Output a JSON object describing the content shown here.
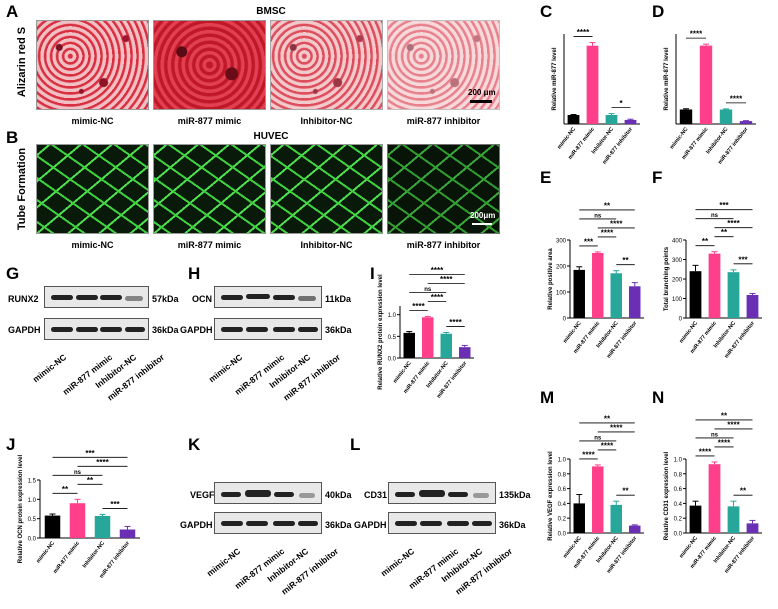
{
  "panels": {
    "A": "A",
    "B": "B",
    "C": "C",
    "D": "D",
    "E": "E",
    "F": "F",
    "G": "G",
    "H": "H",
    "I": "I",
    "J": "J",
    "K": "K",
    "L": "L",
    "M": "M",
    "N": "N"
  },
  "sectionA": {
    "title": "BMSC",
    "row_label": "Alizarin red S",
    "scale": "200 μm"
  },
  "sectionB": {
    "title": "HUVEC",
    "row_label": "Tube Formation",
    "scale": "200μm"
  },
  "conditions": [
    "mimic-NC",
    "miR-877 mimic",
    "Inhibitor-NC",
    "miR-877 inhibitor"
  ],
  "blots": {
    "G": {
      "target": "RUNX2",
      "target_kda": "57kDa",
      "control": "GAPDH",
      "control_kda": "36kDa"
    },
    "H": {
      "target": "OCN",
      "target_kda": "11kDa",
      "control": "GAPDH",
      "control_kda": "36kDa"
    },
    "K": {
      "target": "VEGF",
      "target_kda": "40kDa",
      "control": "GAPDH",
      "control_kda": "36kDa"
    },
    "L": {
      "target": "CD31",
      "target_kda": "135kDa",
      "control": "GAPDH",
      "control_kda": "36kDa"
    }
  },
  "colors": {
    "mimicNC": "#000000",
    "mimic": "#ff3f8a",
    "inhNC": "#27a69a",
    "inhibitor": "#6a2fb5"
  },
  "chart_data": [
    {
      "panel": "C",
      "type": "bar",
      "ylabel": "Relative miR-877 level",
      "categories": [
        "mimic-NC",
        "miR-877 mimic",
        "Inhibitor-NC",
        "miR-877 inhibitor"
      ],
      "values": [
        1.0,
        8.7,
        1.0,
        0.45
      ],
      "errors": [
        0.05,
        0.35,
        0.15,
        0.08
      ],
      "ylim": [
        0,
        10
      ],
      "yticks": [],
      "sig": [
        [
          "0",
          "1",
          "****"
        ],
        [
          "2",
          "3",
          "*"
        ]
      ]
    },
    {
      "panel": "D",
      "type": "bar",
      "ylabel": "Relative miR-877 level",
      "categories": [
        "mimic-NC",
        "miR-877 mimic",
        "Inhibitor-NC",
        "miR-877 inhibitor"
      ],
      "values": [
        1.0,
        5.4,
        1.0,
        0.2
      ],
      "errors": [
        0.05,
        0.1,
        0.04,
        0.03
      ],
      "ylim": [
        0,
        6.2
      ],
      "yticks": [],
      "sig": [
        [
          "0",
          "1",
          "****"
        ],
        [
          "2",
          "3",
          "****"
        ]
      ]
    },
    {
      "panel": "E",
      "type": "bar",
      "ylabel": "Relative positive area",
      "categories": [
        "mimic-NC",
        "miR-877 mimic",
        "Inhibitor-NC",
        "miR-877 inhibitor"
      ],
      "values": [
        185,
        250,
        172,
        122
      ],
      "errors": [
        12,
        4,
        10,
        14
      ],
      "ylim": [
        0,
        300
      ],
      "yticks": [
        "0",
        "100",
        "200",
        "300"
      ],
      "sig": [
        [
          "0",
          "1",
          "***"
        ],
        [
          "2",
          "3",
          "**"
        ],
        [
          "1",
          "2",
          "****"
        ],
        [
          "1",
          "3",
          "****"
        ],
        [
          "0",
          "2",
          "ns"
        ],
        [
          "0",
          "3",
          "**"
        ]
      ]
    },
    {
      "panel": "F",
      "type": "bar",
      "ylabel": "Total branching points",
      "categories": [
        "mimic-NC",
        "miR-877 mimic",
        "Inhibitor-NC",
        "miR-877 inhibitor"
      ],
      "values": [
        240,
        330,
        235,
        118
      ],
      "errors": [
        30,
        10,
        12,
        8
      ],
      "ylim": [
        0,
        400
      ],
      "yticks": [
        "0",
        "100",
        "200",
        "300",
        "400"
      ],
      "sig": [
        [
          "0",
          "1",
          "**"
        ],
        [
          "1",
          "2",
          "**"
        ],
        [
          "2",
          "3",
          "***"
        ],
        [
          "1",
          "3",
          "****"
        ],
        [
          "0",
          "2",
          "ns"
        ],
        [
          "0",
          "3",
          "***"
        ]
      ]
    },
    {
      "panel": "I",
      "type": "bar",
      "ylabel": "Relative RUNX2 protein expression level",
      "categories": [
        "mimic-NC",
        "miR-877 mimic",
        "Inhibitor-NC",
        "miR-877 inhibitor"
      ],
      "values": [
        0.58,
        0.94,
        0.56,
        0.25
      ],
      "errors": [
        0.03,
        0.02,
        0.03,
        0.04
      ],
      "ylim": [
        0,
        1.2
      ],
      "yticks": [
        "0.0",
        "0.5",
        "1.0"
      ],
      "sig": [
        [
          "0",
          "1",
          "****"
        ],
        [
          "2",
          "3",
          "****"
        ],
        [
          "1",
          "2",
          "****"
        ],
        [
          "0",
          "2",
          "ns"
        ],
        [
          "1",
          "3",
          "****"
        ],
        [
          "0",
          "3",
          "****"
        ]
      ]
    },
    {
      "panel": "J",
      "type": "bar",
      "ylabel": "Relative OCN protein expression level",
      "categories": [
        "mimic-NC",
        "miR-877 mimic",
        "Inhibitor-NC",
        "miR-877 inhibitor"
      ],
      "values": [
        0.58,
        0.9,
        0.57,
        0.22
      ],
      "errors": [
        0.04,
        0.1,
        0.04,
        0.08
      ],
      "ylim": [
        0,
        1.5
      ],
      "yticks": [
        "0.0",
        "0.5",
        "1.0",
        "1.5"
      ],
      "sig": [
        [
          "0",
          "1",
          "**"
        ],
        [
          "1",
          "2",
          "**"
        ],
        [
          "2",
          "3",
          "***"
        ],
        [
          "0",
          "2",
          "ns"
        ],
        [
          "1",
          "3",
          "****"
        ],
        [
          "0",
          "3",
          "***"
        ]
      ]
    },
    {
      "panel": "M",
      "type": "bar",
      "ylabel": "Relative VEGF expression level",
      "categories": [
        "mimic-NC",
        "miR-877 mimic",
        "Inhibitor-NC",
        "miR-877 inhibitor"
      ],
      "values": [
        0.4,
        0.9,
        0.38,
        0.1
      ],
      "errors": [
        0.12,
        0.02,
        0.05,
        0.01
      ],
      "ylim": [
        0,
        1.0
      ],
      "yticks": [
        "0.0",
        "0.2",
        "0.4",
        "0.6",
        "0.8",
        "1.0"
      ],
      "sig": [
        [
          "0",
          "1",
          "****"
        ],
        [
          "2",
          "3",
          "**"
        ],
        [
          "1",
          "2",
          "****"
        ],
        [
          "0",
          "2",
          "ns"
        ],
        [
          "1",
          "3",
          "****"
        ],
        [
          "0",
          "3",
          "**"
        ]
      ]
    },
    {
      "panel": "N",
      "type": "bar",
      "ylabel": "Relative CD31 expression level",
      "categories": [
        "mimic-NC",
        "miR-877 mimic",
        "Inhibitor-NC",
        "miR-877 inhibitor"
      ],
      "values": [
        0.37,
        0.93,
        0.36,
        0.13
      ],
      "errors": [
        0.06,
        0.03,
        0.07,
        0.04
      ],
      "ylim": [
        0,
        1.0
      ],
      "yticks": [
        "0.0",
        "0.2",
        "0.4",
        "0.6",
        "0.8",
        "1.0"
      ],
      "sig": [
        [
          "0",
          "1",
          "****"
        ],
        [
          "1",
          "2",
          "****"
        ],
        [
          "2",
          "3",
          "**"
        ],
        [
          "0",
          "2",
          "ns"
        ],
        [
          "1",
          "3",
          "****"
        ],
        [
          "0",
          "3",
          "**"
        ]
      ]
    }
  ]
}
